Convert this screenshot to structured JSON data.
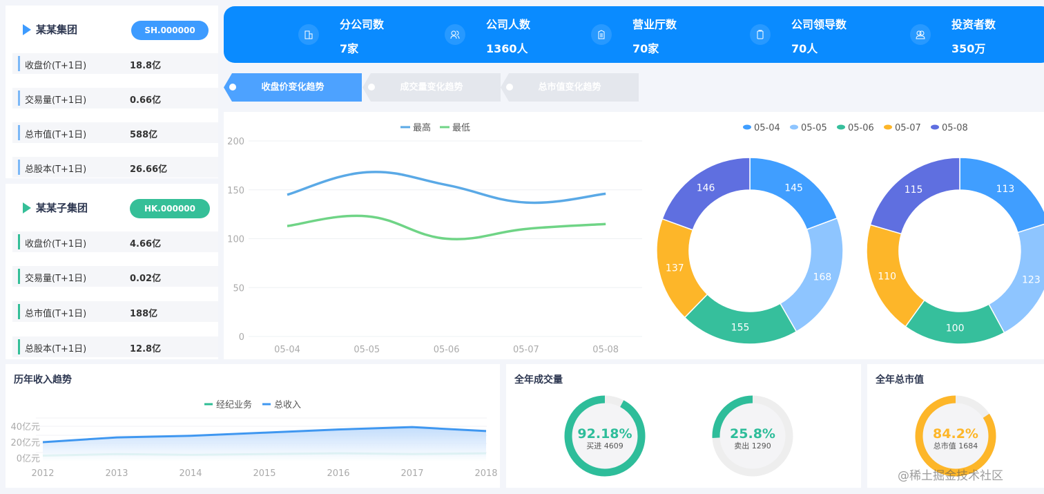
{
  "groups": [
    {
      "title": "某某集团",
      "code": "SH.000000",
      "color": "#3d9bff",
      "bar_color": "#7cb8f7",
      "rows": [
        {
          "k": "收盘价(T+1日)",
          "v": "18.8亿"
        },
        {
          "k": "交易量(T+1日)",
          "v": "0.66亿"
        },
        {
          "k": "总市值(T+1日)",
          "v": "588亿"
        },
        {
          "k": "总股本(T+1日)",
          "v": "26.66亿"
        }
      ]
    },
    {
      "title": "某某子集团",
      "code": "HK.000000",
      "color": "#35bf98",
      "bar_color": "#35bf98",
      "rows": [
        {
          "k": "收盘价(T+1日)",
          "v": "4.66亿"
        },
        {
          "k": "交易量(T+1日)",
          "v": "0.02亿"
        },
        {
          "k": "总市值(T+1日)",
          "v": "188亿"
        },
        {
          "k": "总股本(T+1日)",
          "v": "12.8亿"
        }
      ]
    }
  ],
  "stats": [
    {
      "label": "分公司数",
      "value": "7家",
      "icon": "building-icon"
    },
    {
      "label": "公司人数",
      "value": "1360人",
      "icon": "users-icon"
    },
    {
      "label": "营业厅数",
      "value": "70家",
      "icon": "document-icon"
    },
    {
      "label": "公司领导数",
      "value": "70人",
      "icon": "clipboard-icon"
    },
    {
      "label": "投资者数",
      "value": "350万",
      "icon": "investors-icon"
    }
  ],
  "tabs": [
    {
      "label": "收盘价变化趋势",
      "active": true
    },
    {
      "label": "成交量变化趋势",
      "active": false
    },
    {
      "label": "总市值变化趋势",
      "active": false
    }
  ],
  "watermark": "@稀土掘金技术社区",
  "chart_data": [
    {
      "type": "line",
      "smooth": true,
      "categories": [
        "05-04",
        "05-05",
        "05-06",
        "05-07",
        "05-08"
      ],
      "series": [
        {
          "name": "最高",
          "values": [
            145,
            168,
            155,
            137,
            146
          ],
          "color": "#5aa9e6"
        },
        {
          "name": "最低",
          "values": [
            113,
            123,
            100,
            110,
            115
          ],
          "color": "#6fd486"
        }
      ],
      "ylim": [
        0,
        200
      ],
      "yticks": [
        0,
        50,
        100,
        150,
        200
      ],
      "legend": "top-center",
      "grid": true
    },
    {
      "type": "pie",
      "donut": true,
      "legend": [
        "05-04",
        "05-05",
        "05-06",
        "05-07",
        "05-08"
      ],
      "colors": [
        "#409eff",
        "#8ec5ff",
        "#36bf9c",
        "#fdb629",
        "#5f6fe0"
      ],
      "series": [
        {
          "values": [
            145,
            168,
            155,
            137,
            146
          ]
        },
        {
          "values": [
            113,
            123,
            100,
            110,
            115
          ]
        }
      ]
    },
    {
      "type": "area",
      "title": "历年收入趋势",
      "categories": [
        "2012",
        "2013",
        "2014",
        "2015",
        "2016",
        "2017",
        "2018"
      ],
      "series": [
        {
          "name": "经纪业务",
          "values": [
            3,
            5,
            4,
            5,
            6,
            5,
            6
          ],
          "color": "#2ebd94"
        },
        {
          "name": "总收入",
          "values": [
            20,
            26,
            28,
            32,
            36,
            39,
            34
          ],
          "color": "#3f97f0"
        }
      ],
      "ylim": [
        0,
        50
      ],
      "yticks": [
        "0亿元",
        "20亿元",
        "40亿元"
      ],
      "ytick_values": [
        0,
        20,
        40
      ],
      "legend": "top-center"
    }
  ],
  "volume": {
    "title": "全年成交量",
    "gauges": [
      {
        "pct": 92.18,
        "pct_label": "92.18%",
        "label": "买进 4609",
        "color": "#2ebd9a"
      },
      {
        "pct": 25.8,
        "pct_label": "25.8%",
        "label": "卖出 1290",
        "color": "#2ebd9a"
      }
    ]
  },
  "market": {
    "title": "全年总市值",
    "gauges": [
      {
        "pct": 84.2,
        "pct_label": "84.2%",
        "label": "总市值 1684",
        "color": "#fdb629"
      }
    ]
  }
}
